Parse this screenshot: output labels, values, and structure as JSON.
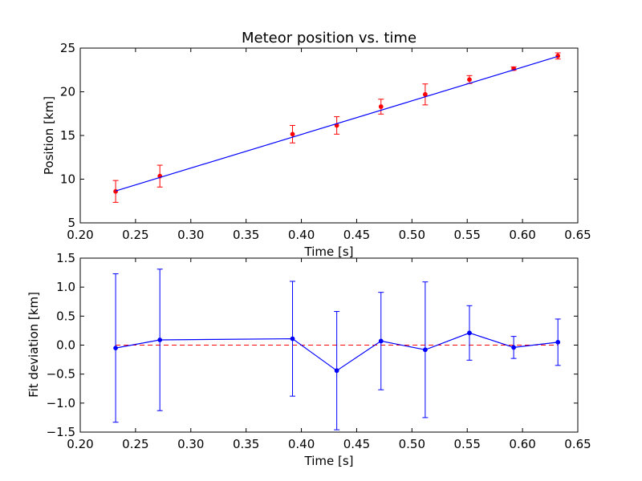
{
  "chart_data": [
    {
      "type": "scatter",
      "title": "Meteor position vs. time",
      "xlabel": "Time [s]",
      "ylabel": "Position [km]",
      "xlim": [
        0.2,
        0.65
      ],
      "ylim": [
        5,
        25
      ],
      "xticks": [
        "0.20",
        "0.25",
        "0.30",
        "0.35",
        "0.40",
        "0.45",
        "0.50",
        "0.55",
        "0.60",
        "0.65"
      ],
      "yticks": [
        "5",
        "10",
        "15",
        "20",
        "25"
      ],
      "grid": false,
      "series": [
        {
          "kind": "errorbar",
          "color": "#ff0000",
          "x": [
            0.232,
            0.272,
            0.392,
            0.432,
            0.472,
            0.512,
            0.552,
            0.592,
            0.632
          ],
          "y": [
            8.6,
            10.35,
            15.15,
            16.15,
            18.3,
            19.7,
            21.4,
            22.65,
            24.1
          ],
          "yerr": [
            1.25,
            1.25,
            1.0,
            1.0,
            0.85,
            1.2,
            0.45,
            0.2,
            0.35
          ]
        },
        {
          "kind": "fit-line",
          "color": "#0000ff",
          "x": [
            0.232,
            0.632
          ],
          "y": [
            8.65,
            24.05
          ]
        }
      ]
    },
    {
      "type": "scatter",
      "title": "",
      "xlabel": "Time [s]",
      "ylabel": "Fit deviation [km]",
      "xlim": [
        0.2,
        0.65
      ],
      "ylim": [
        -1.5,
        1.5
      ],
      "xticks": [
        "0.20",
        "0.25",
        "0.30",
        "0.35",
        "0.40",
        "0.45",
        "0.50",
        "0.55",
        "0.60",
        "0.65"
      ],
      "yticks": [
        "−1.5",
        "−1.0",
        "−0.5",
        "0.0",
        "0.5",
        "1.0",
        "1.5"
      ],
      "grid": false,
      "zero_line": {
        "y": 0.0,
        "color": "#ff0000",
        "style": "dashed"
      },
      "series": [
        {
          "kind": "errorbar-line",
          "color": "#0000ff",
          "x": [
            0.232,
            0.272,
            0.392,
            0.432,
            0.472,
            0.512,
            0.552,
            0.592,
            0.632
          ],
          "y": [
            -0.05,
            0.09,
            0.11,
            -0.44,
            0.07,
            -0.08,
            0.21,
            -0.04,
            0.05
          ],
          "yerr": [
            1.28,
            1.22,
            0.99,
            1.02,
            0.84,
            1.17,
            0.47,
            0.19,
            0.4
          ]
        }
      ]
    }
  ]
}
